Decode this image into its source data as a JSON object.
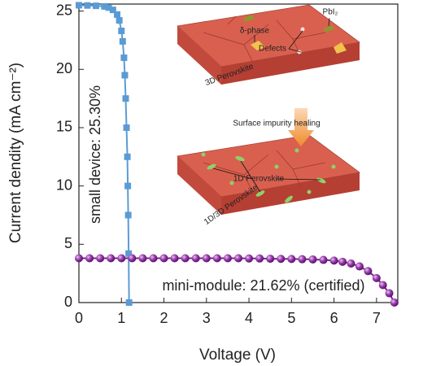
{
  "chart_data": {
    "type": "line",
    "x_label": "Voltage (V)",
    "y_label": "Current dendity (mA cm⁻²)",
    "xlim": [
      0,
      7.5
    ],
    "xticks": [
      0,
      1,
      2,
      3,
      4,
      5,
      6,
      7
    ],
    "ylim": [
      0,
      25.6
    ],
    "yticks": [
      0,
      5,
      10,
      15,
      20,
      25
    ],
    "series": [
      {
        "color": "#5b9bd5",
        "marker": "square",
        "x": [
          0,
          0.2,
          0.4,
          0.6,
          0.7,
          0.8,
          0.9,
          0.95,
          1.0,
          1.03,
          1.06,
          1.08,
          1.1,
          1.12,
          1.14,
          1.15,
          1.16,
          1.17,
          1.18
        ],
        "values": [
          25.5,
          25.48,
          25.45,
          25.4,
          25.3,
          25.1,
          24.7,
          24.2,
          23.3,
          22.4,
          21,
          19.5,
          17.5,
          15,
          12.5,
          10,
          7.5,
          4.2,
          0
        ]
      },
      {
        "color": "#7b1f8f",
        "marker": "sphere",
        "x": [
          0,
          0.25,
          0.5,
          0.75,
          1,
          1.25,
          1.5,
          1.75,
          2,
          2.25,
          2.5,
          2.75,
          3,
          3.25,
          3.5,
          3.75,
          4,
          4.25,
          4.5,
          4.75,
          5,
          5.25,
          5.5,
          5.75,
          6,
          6.2,
          6.4,
          6.6,
          6.8,
          7.0,
          7.15,
          7.3,
          7.42
        ],
        "values": [
          3.8,
          3.8,
          3.8,
          3.8,
          3.8,
          3.8,
          3.8,
          3.8,
          3.8,
          3.8,
          3.8,
          3.8,
          3.8,
          3.8,
          3.8,
          3.8,
          3.78,
          3.78,
          3.76,
          3.75,
          3.74,
          3.72,
          3.7,
          3.66,
          3.6,
          3.5,
          3.35,
          3.1,
          2.7,
          2.1,
          1.5,
          0.8,
          0
        ]
      }
    ],
    "annotations": [
      "small device: 25.30%",
      "mini-module: 21.62% (certified)"
    ],
    "inset": {
      "top_block": "3D Perovskite",
      "delta": "δ-phase",
      "pbi2": "PbI₂",
      "defects": "Defects",
      "arrow": "Surface impurity healing",
      "one_d": "1D Perovskite",
      "bottom_block": "1D/3D Perovskite"
    }
  }
}
